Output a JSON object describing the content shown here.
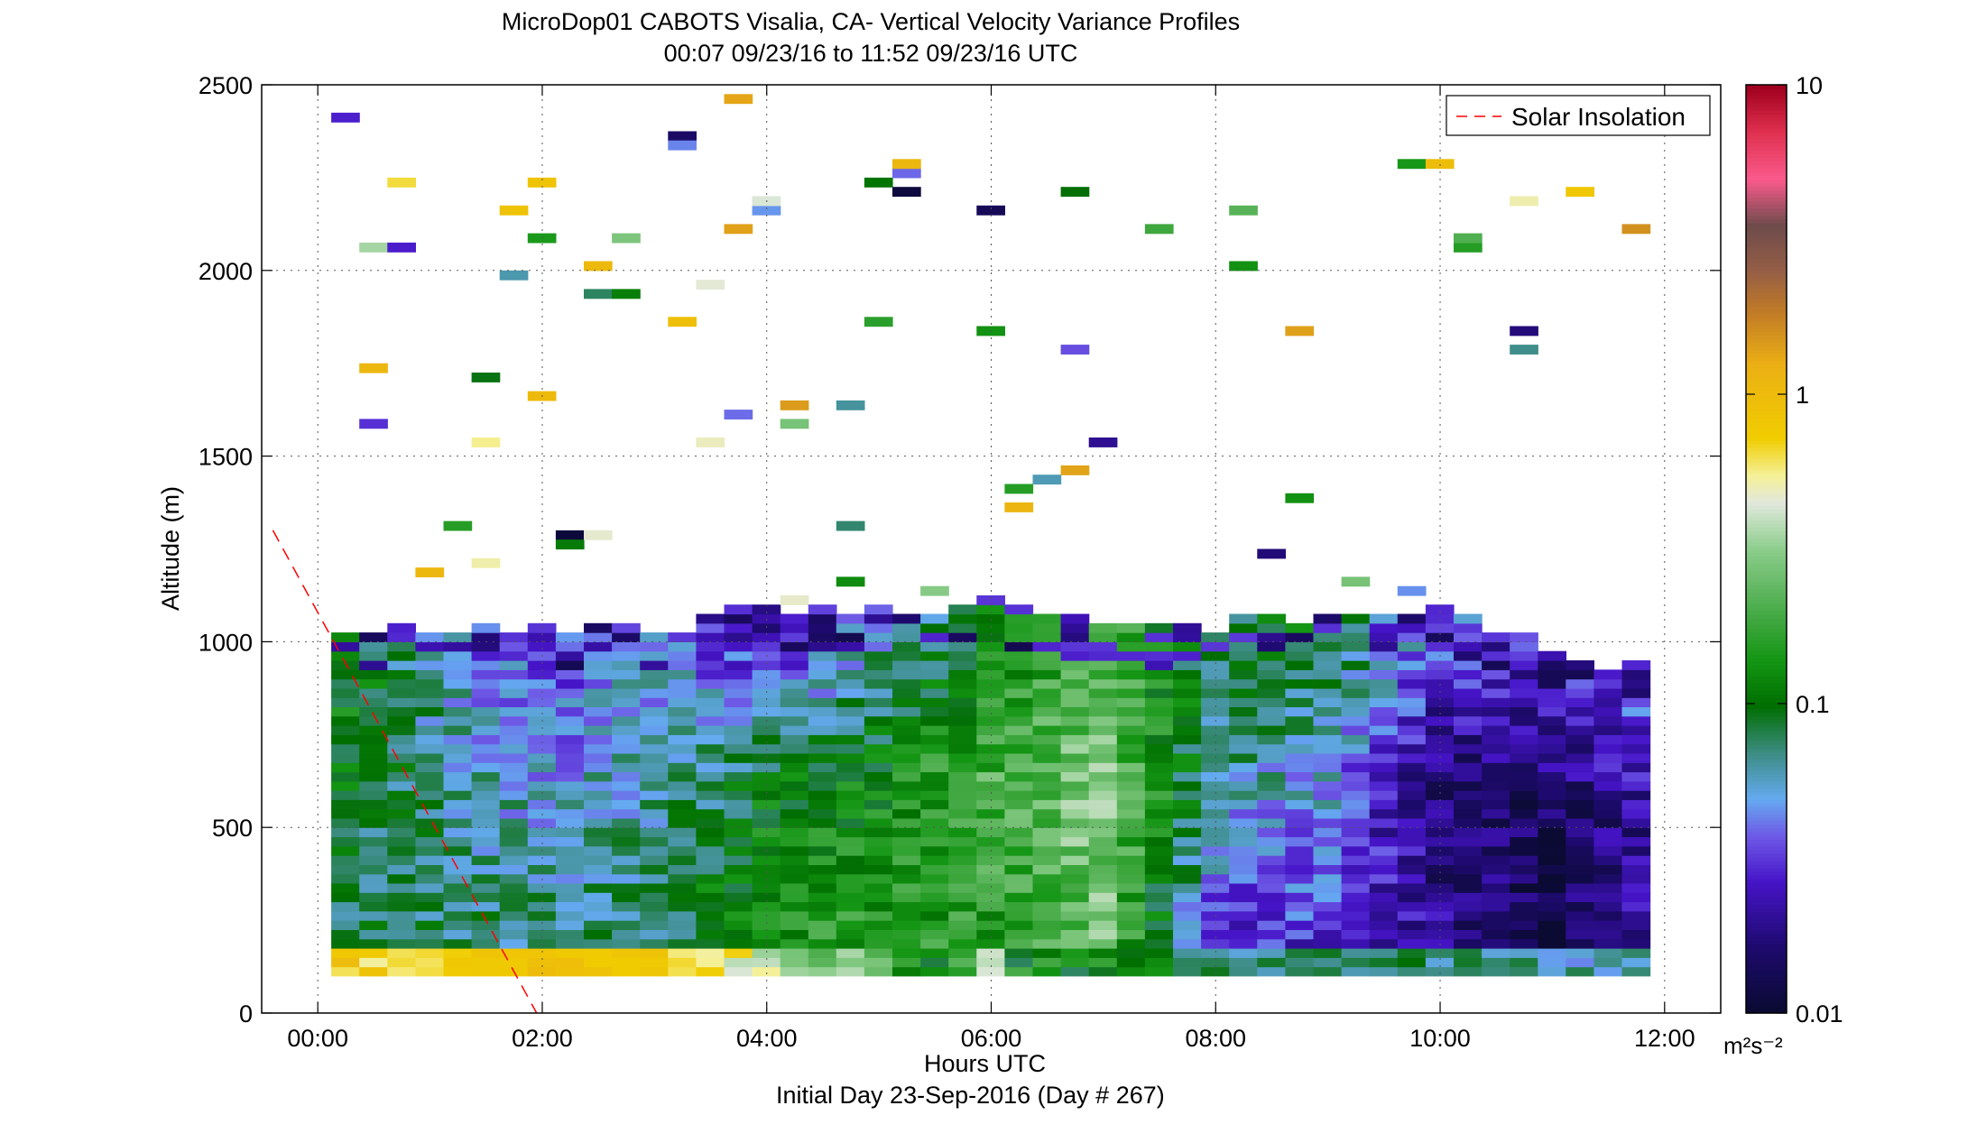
{
  "title": "MicroDop01 CABOTS Visalia, CA- Vertical Velocity Variance Profiles",
  "subtitle": "00:07 09/23/16 to 11:52 09/23/16  UTC",
  "xlabel": "Hours UTC",
  "footer": "Initial Day 23-Sep-2016 (Day # 267)",
  "ylabel": "Altitude (m)",
  "legend": {
    "label": "Solar Insolation",
    "color": "#ff0000"
  },
  "colorbar": {
    "unit_label": "m²s⁻²",
    "ticks": [
      "0.01",
      "0.1",
      "1",
      "10"
    ]
  },
  "chart_data": {
    "type": "heatmap",
    "title": "MicroDop01 CABOTS Visalia, CA- Vertical Velocity Variance Profiles",
    "subtitle": "00:07 09/23/16 to 11:52 09/23/16  UTC",
    "xlabel": "Hours UTC",
    "ylabel": "Altitude (m)",
    "x_unit": "hours UTC",
    "xlim": [
      -0.5,
      12.5
    ],
    "ylim": [
      0,
      2500
    ],
    "x_ticks": [
      "00:00",
      "02:00",
      "04:00",
      "06:00",
      "08:00",
      "10:00",
      "12:00"
    ],
    "y_ticks": [
      "0",
      "500",
      "1000",
      "1500",
      "2000",
      "2500"
    ],
    "color_scale": "log",
    "clim": [
      0.01,
      10
    ],
    "grid": true,
    "legend_position": "top-right",
    "bin_width_hours": 0.25,
    "bin_height_m": 25,
    "time_range_hours": [
      0.12,
      11.87
    ],
    "solar_insolation_line": {
      "x": [
        -0.4,
        1.95
      ],
      "y": [
        1300,
        0
      ]
    },
    "approx_profiles": [
      {
        "x": 0.25,
        "top_m": 1000,
        "near_surface": [
          0.5,
          1.0
        ],
        "boundary_layer": [
          0.07,
          0.1,
          0.12
        ]
      },
      {
        "x": 1.0,
        "top_m": 1000,
        "near_surface": [
          0.6,
          0.8
        ],
        "boundary_layer": [
          0.08,
          0.07,
          0.06
        ]
      },
      {
        "x": 2.0,
        "top_m": 1000,
        "near_surface": [
          0.8,
          1.0
        ],
        "boundary_layer": [
          0.07,
          0.05,
          0.03
        ]
      },
      {
        "x": 3.0,
        "top_m": 1000,
        "near_surface": [
          0.7,
          0.9
        ],
        "boundary_layer": [
          0.08,
          0.06,
          0.05
        ]
      },
      {
        "x": 4.0,
        "top_m": 1050,
        "near_surface": [
          0.3,
          0.7
        ],
        "boundary_layer": [
          0.15,
          0.1,
          0.02
        ]
      },
      {
        "x": 5.0,
        "top_m": 1050,
        "near_surface": [
          0.1,
          0.3
        ],
        "boundary_layer": [
          0.15,
          0.12,
          0.05
        ]
      },
      {
        "x": 6.0,
        "top_m": 1050,
        "near_surface": [
          0.05,
          0.6
        ],
        "boundary_layer": [
          0.15,
          0.2,
          0.1
        ]
      },
      {
        "x": 7.0,
        "top_m": 1000,
        "near_surface": [
          0.08,
          0.2
        ],
        "boundary_layer": [
          0.25,
          0.3,
          0.2
        ]
      },
      {
        "x": 8.0,
        "top_m": 1000,
        "near_surface": [
          0.05,
          0.1
        ],
        "boundary_layer": [
          0.03,
          0.06,
          0.08
        ]
      },
      {
        "x": 9.0,
        "top_m": 1050,
        "near_surface": [
          0.06,
          0.1
        ],
        "boundary_layer": [
          0.03,
          0.05,
          0.1
        ]
      },
      {
        "x": 10.0,
        "top_m": 1050,
        "near_surface": [
          0.05,
          0.1
        ],
        "boundary_layer": [
          0.02,
          0.015,
          0.04
        ]
      },
      {
        "x": 11.0,
        "top_m": 950,
        "near_surface": [
          0.04,
          0.08
        ],
        "boundary_layer": [
          0.012,
          0.015,
          0.03
        ]
      },
      {
        "x": 11.75,
        "top_m": 900,
        "near_surface": [
          0.05,
          0.08
        ],
        "boundary_layer": [
          0.02,
          0.02,
          0.04
        ]
      }
    ]
  }
}
